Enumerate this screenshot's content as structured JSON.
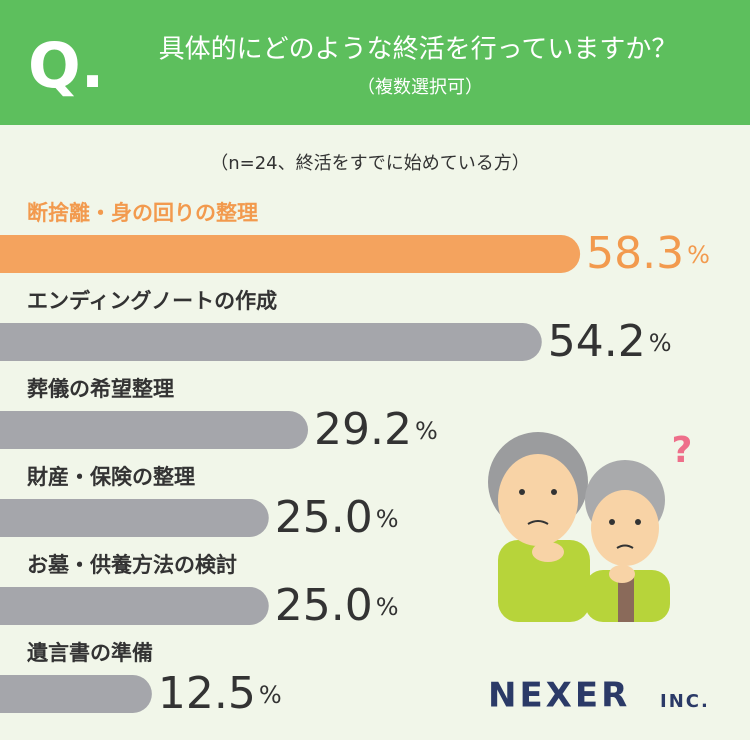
{
  "header": {
    "mark": "Q.",
    "title": "具体的にどのような終活を行っていますか？",
    "subtitle": "（複数選択可）"
  },
  "chart_data": {
    "type": "bar",
    "orientation": "horizontal",
    "note": "（n=24、終活をすでに始めている方）",
    "categories": [
      "断捨離・身の回りの整理",
      "エンディングノートの作成",
      "葬儀の希望整理",
      "財産・保険の整理",
      "お墓・供養方法の検討",
      "遺言書の準備"
    ],
    "values": [
      58.3,
      54.2,
      29.2,
      25.0,
      25.0,
      12.5
    ],
    "value_labels": [
      "58.3%",
      "54.2%",
      "29.2%",
      "25.0%",
      "25.0%",
      "12.5%"
    ],
    "colors": [
      "#f4a35e",
      "#a5a6ab",
      "#a5a6ab",
      "#a5a6ab",
      "#a5a6ab",
      "#a5a6ab"
    ],
    "text_colors": [
      "#f29a4e",
      "#333333",
      "#333333",
      "#333333",
      "#333333",
      "#333333"
    ]
  },
  "illustration": {
    "decoration": "?"
  },
  "logo": {
    "name": "NEXER",
    "suffix": "INC."
  }
}
